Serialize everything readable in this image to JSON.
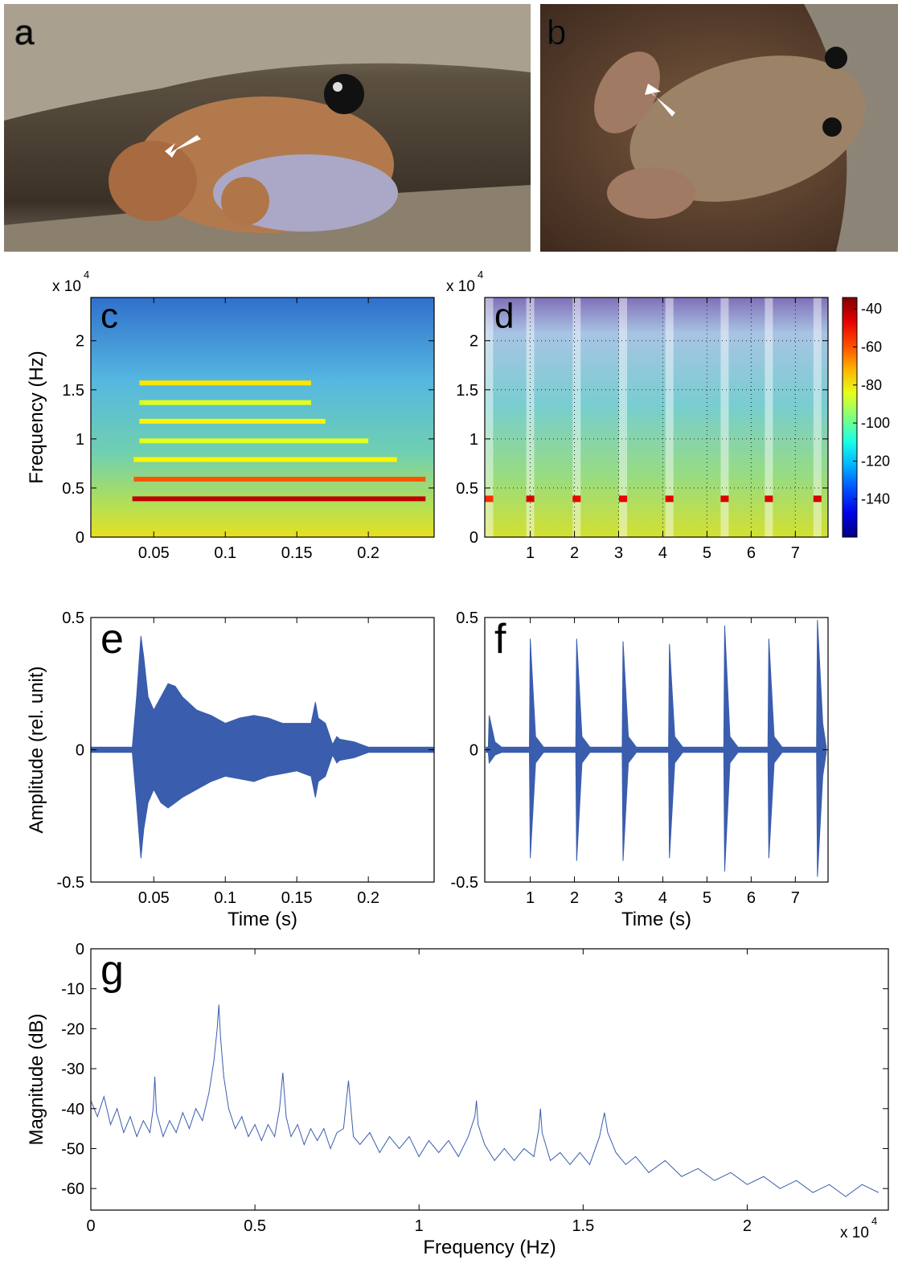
{
  "photos": [
    {
      "label": "a"
    },
    {
      "label": "b"
    }
  ],
  "chart_data": [
    {
      "type": "spectrogram",
      "label": "c",
      "ylabel": "Frequency (Hz)",
      "y_scale_label": "x 10",
      "y_scale_power": "4",
      "xlim": [
        0.006,
        0.246
      ],
      "ylim": [
        0,
        2.44
      ],
      "xticks": [
        0.05,
        0.1,
        0.15,
        0.2
      ],
      "yticks": [
        0,
        0.5,
        1,
        1.5,
        2
      ],
      "harmonics": {
        "freq": [
          0.39,
          0.59,
          0.79,
          0.98,
          1.18,
          1.37,
          1.57
        ],
        "start": [
          0.035,
          0.036,
          0.036,
          0.04,
          0.04,
          0.04,
          0.04
        ],
        "end": [
          0.24,
          0.24,
          0.22,
          0.2,
          0.17,
          0.16,
          0.16
        ],
        "level": [
          -42,
          -60,
          -80,
          -85,
          -80,
          -85,
          -78
        ]
      }
    },
    {
      "type": "spectrogram",
      "label": "d",
      "y_scale_label": "x 10",
      "y_scale_power": "4",
      "grid": true,
      "xlim": [
        -0.03,
        7.74
      ],
      "ylim": [
        0,
        2.44
      ],
      "xticks": [
        1,
        2,
        3,
        4,
        5,
        6,
        7
      ],
      "yticks": [
        0,
        0.5,
        1,
        1.5,
        2
      ],
      "calls": {
        "time": [
          0.07,
          1.0,
          2.05,
          3.1,
          4.15,
          5.4,
          6.4,
          7.5
        ],
        "freq": [
          0.39,
          0.39,
          0.39,
          0.39,
          0.39,
          0.39,
          0.39,
          0.39
        ],
        "level": [
          -55,
          -45,
          -48,
          -47,
          -46,
          -45,
          -45,
          -44
        ]
      },
      "colorbar": {
        "lim": [
          -160,
          -34
        ],
        "ticks": [
          -40,
          -60,
          -80,
          -100,
          -120,
          -140
        ]
      }
    },
    {
      "type": "waveform",
      "label": "e",
      "xlabel": "Time (s)",
      "ylabel": "Amplitude (rel. unit)",
      "xlim": [
        0.006,
        0.246
      ],
      "ylim": [
        -0.5,
        0.5
      ],
      "xticks": [
        0.05,
        0.1,
        0.15,
        0.2
      ],
      "yticks": [
        -0.5,
        0,
        0.5
      ],
      "x": [
        0.006,
        0.035,
        0.038,
        0.041,
        0.043,
        0.046,
        0.05,
        0.055,
        0.06,
        0.065,
        0.07,
        0.08,
        0.09,
        0.1,
        0.11,
        0.12,
        0.13,
        0.14,
        0.15,
        0.16,
        0.163,
        0.165,
        0.17,
        0.175,
        0.178,
        0.18,
        0.19,
        0.2,
        0.246
      ],
      "series": [
        {
          "color": "#3a5dae",
          "values": [
            0.01,
            0.01,
            0.2,
            0.43,
            0.35,
            0.2,
            0.15,
            0.2,
            0.25,
            0.24,
            0.2,
            0.15,
            0.13,
            0.1,
            0.12,
            0.13,
            0.12,
            0.1,
            0.1,
            0.1,
            0.18,
            0.12,
            0.1,
            0.02,
            0.05,
            0.04,
            0.03,
            0.01,
            0.01
          ]
        },
        {
          "color": "#3a5dae",
          "values": [
            -0.01,
            -0.01,
            -0.2,
            -0.41,
            -0.3,
            -0.2,
            -0.15,
            -0.2,
            -0.22,
            -0.2,
            -0.18,
            -0.15,
            -0.12,
            -0.1,
            -0.11,
            -0.12,
            -0.1,
            -0.09,
            -0.08,
            -0.1,
            -0.18,
            -0.12,
            -0.1,
            -0.02,
            -0.05,
            -0.04,
            -0.03,
            -0.01,
            -0.01
          ]
        }
      ]
    },
    {
      "type": "waveform",
      "label": "f",
      "xlabel": "Time (s)",
      "xlim": [
        -0.03,
        7.74
      ],
      "ylim": [
        -0.5,
        0.5
      ],
      "xticks": [
        1,
        2,
        3,
        4,
        5,
        6,
        7
      ],
      "yticks": [
        -0.5,
        0,
        0.5
      ],
      "x": [
        0,
        0.05,
        0.07,
        0.2,
        0.35,
        0.98,
        1.0,
        1.12,
        1.3,
        2.03,
        2.05,
        2.17,
        2.35,
        3.08,
        3.1,
        3.22,
        3.4,
        4.13,
        4.15,
        4.27,
        4.45,
        5.38,
        5.4,
        5.52,
        5.7,
        6.38,
        6.4,
        6.52,
        6.7,
        7.48,
        7.5,
        7.62,
        7.7
      ],
      "series": [
        {
          "color": "#3a5dae",
          "values": [
            0.01,
            0.01,
            0.13,
            0.03,
            0.01,
            0.01,
            0.42,
            0.05,
            0.01,
            0.01,
            0.42,
            0.05,
            0.01,
            0.01,
            0.41,
            0.05,
            0.01,
            0.01,
            0.4,
            0.05,
            0.01,
            0.01,
            0.47,
            0.05,
            0.01,
            0.01,
            0.42,
            0.05,
            0.01,
            0.01,
            0.49,
            0.1,
            0.01
          ]
        },
        {
          "color": "#3a5dae",
          "values": [
            -0.01,
            -0.01,
            -0.05,
            -0.02,
            -0.01,
            -0.01,
            -0.41,
            -0.05,
            -0.01,
            -0.01,
            -0.42,
            -0.05,
            -0.01,
            -0.01,
            -0.42,
            -0.05,
            -0.01,
            -0.01,
            -0.41,
            -0.05,
            -0.01,
            -0.01,
            -0.46,
            -0.05,
            -0.01,
            -0.01,
            -0.41,
            -0.05,
            -0.01,
            -0.01,
            -0.48,
            -0.1,
            -0.01
          ]
        }
      ]
    },
    {
      "type": "line",
      "label": "g",
      "xlabel": "Frequency (Hz)",
      "ylabel": "Magnitude (dB)",
      "x_scale_label": "x 10",
      "x_scale_power": "4",
      "xlim": [
        0,
        2.43
      ],
      "ylim": [
        -65.4,
        0
      ],
      "xticks": [
        0,
        0.5,
        1,
        1.5,
        2
      ],
      "yticks": [
        0,
        -10,
        -20,
        -30,
        -40,
        -50,
        -60
      ],
      "color": "#3a5dae",
      "x": [
        0,
        0.02,
        0.04,
        0.06,
        0.08,
        0.1,
        0.12,
        0.14,
        0.16,
        0.18,
        0.19,
        0.195,
        0.2,
        0.22,
        0.24,
        0.26,
        0.28,
        0.3,
        0.32,
        0.34,
        0.36,
        0.375,
        0.385,
        0.39,
        0.395,
        0.405,
        0.42,
        0.44,
        0.46,
        0.48,
        0.5,
        0.52,
        0.54,
        0.56,
        0.575,
        0.585,
        0.595,
        0.61,
        0.63,
        0.65,
        0.67,
        0.69,
        0.71,
        0.73,
        0.75,
        0.77,
        0.785,
        0.8,
        0.82,
        0.85,
        0.88,
        0.91,
        0.94,
        0.97,
        1.0,
        1.03,
        1.06,
        1.09,
        1.12,
        1.15,
        1.17,
        1.175,
        1.18,
        1.2,
        1.23,
        1.26,
        1.29,
        1.32,
        1.35,
        1.365,
        1.37,
        1.375,
        1.4,
        1.43,
        1.46,
        1.49,
        1.52,
        1.55,
        1.565,
        1.575,
        1.6,
        1.63,
        1.66,
        1.7,
        1.75,
        1.8,
        1.85,
        1.9,
        1.95,
        2.0,
        2.05,
        2.1,
        2.15,
        2.2,
        2.25,
        2.3,
        2.35,
        2.4
      ],
      "values": [
        -38,
        -42,
        -37,
        -44,
        -40,
        -46,
        -42,
        -47,
        -43,
        -46,
        -40,
        -32,
        -41,
        -47,
        -43,
        -46,
        -41,
        -45,
        -40,
        -43,
        -36,
        -28,
        -20,
        -14,
        -22,
        -32,
        -40,
        -45,
        -42,
        -47,
        -44,
        -48,
        -44,
        -47,
        -40,
        -31,
        -42,
        -47,
        -44,
        -49,
        -45,
        -48,
        -45,
        -50,
        -46,
        -45,
        -33,
        -47,
        -49,
        -46,
        -51,
        -47,
        -50,
        -47,
        -52,
        -48,
        -51,
        -48,
        -52,
        -47,
        -42,
        -38,
        -44,
        -49,
        -53,
        -50,
        -53,
        -50,
        -52,
        -45,
        -40,
        -46,
        -53,
        -51,
        -54,
        -51,
        -54,
        -47,
        -41,
        -46,
        -51,
        -54,
        -52,
        -56,
        -53,
        -57,
        -55,
        -58,
        -56,
        -59,
        -57,
        -60,
        -58,
        -61,
        -59,
        -62,
        -59,
        -61
      ]
    }
  ]
}
